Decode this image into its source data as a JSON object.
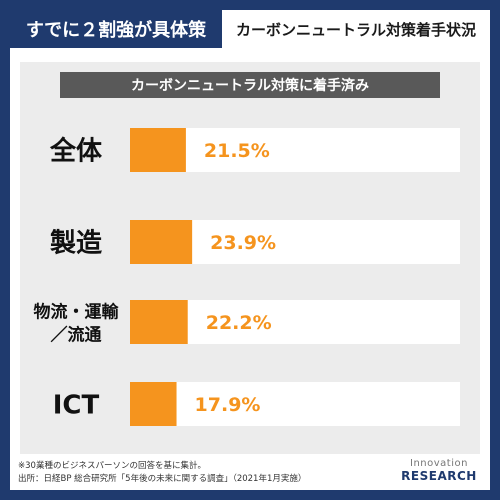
{
  "header": {
    "left_title": "すでに２割強が具体策",
    "right_title": "カーボンニュートラル対策着手状況"
  },
  "chart_data": {
    "type": "bar",
    "title": "カーボンニュートラル対策に着手済み",
    "categories": [
      "全体",
      "製造",
      "物流・運輸\n／流通",
      "ICT"
    ],
    "values": [
      21.5,
      23.9,
      22.2,
      17.9
    ],
    "value_labels": [
      "21.5%",
      "23.9%",
      "22.2%",
      "17.9%"
    ],
    "xlim": [
      0,
      100
    ],
    "orientation": "horizontal",
    "grid": false,
    "colors": {
      "bar": "#f5941e",
      "track": "#ffffff"
    }
  },
  "footnote": {
    "line1": "※30業種のビジネスパーソンの回答を基に集計。",
    "line2": "出所：日経BP 総合研究所「5年後の未来に関する調査」（2021年1月実施）"
  },
  "logo": {
    "top": "Innovation",
    "bottom": "RESEARCH"
  }
}
